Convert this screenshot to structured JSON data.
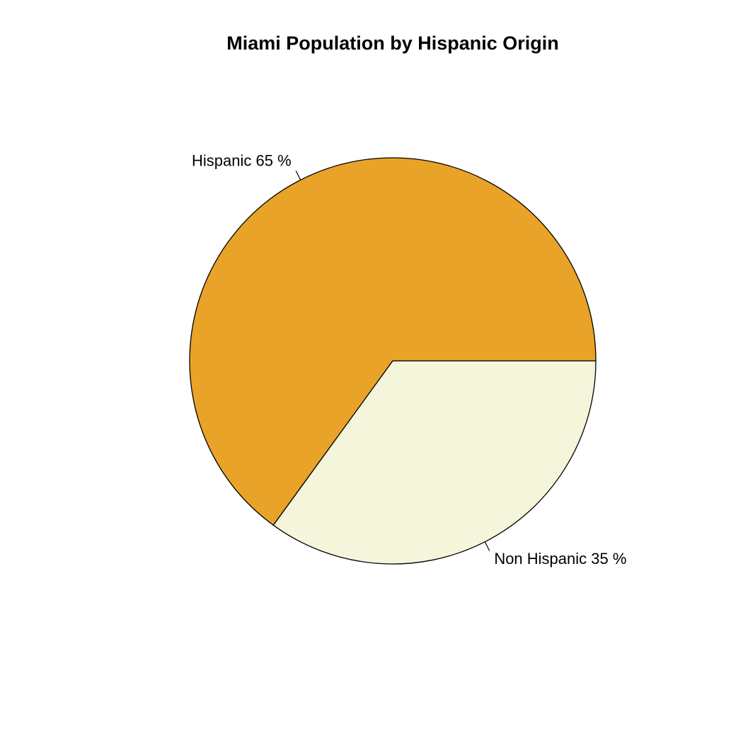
{
  "chart_data": {
    "type": "pie",
    "title": "Miami Population by Hispanic Origin",
    "values": [
      65,
      35
    ],
    "value_labels": [
      "Hispanic 65 %",
      "Non Hispanic 35 %"
    ],
    "colors": [
      "#e8a328",
      "#f5f5dc"
    ]
  }
}
